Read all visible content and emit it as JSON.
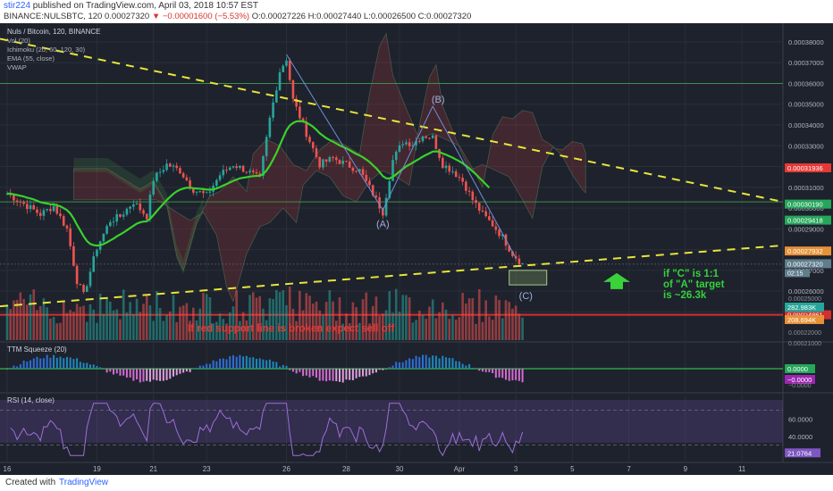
{
  "header": {
    "author": "stir224",
    "published": "published on TradingView.com, April 03, 2018 10:57 EST",
    "symbol_line": "BINANCE:NULSBTC, 120",
    "last": "0.00027320",
    "change": "−0.00001600 (−5.53%)",
    "ohlc": "O:0.00027226 H:0.00027440 L:0.00026500 C:0.00027320"
  },
  "legend": {
    "title": "Nuls / Bitcoin, 120, BINANCE",
    "items": [
      "Vol (20)",
      "Ichimoku (20, 60, 120, 30)",
      "EMA (55, close)",
      "VWAP"
    ]
  },
  "panes": {
    "ttm_label": "TTM Squeeze (20)",
    "rsi_label": "RSI (14, close)"
  },
  "annotations": {
    "support_text": "If red support line is broken expect sell off",
    "target_line1": "if \"C\" is 1:1",
    "target_line2": "of \"A\" target",
    "target_line3": "is ~26.3k",
    "wave_a": "(A)",
    "wave_b": "(B)",
    "wave_c": "(C)"
  },
  "footer": {
    "created": "Created with",
    "brand": "TradingView"
  },
  "colors": {
    "bg": "#1e222d",
    "up": "#26a69a",
    "down": "#ef5350",
    "ema": "#39d12c",
    "dashed": "#e6e63a",
    "support": "#d32f2f",
    "annotation_red": "#e53935",
    "annotation_green": "#35d13b"
  },
  "chart_data": {
    "type": "candlestick",
    "price_axis": {
      "ticks": [
        "0.00038000",
        "0.00037000",
        "0.00036000",
        "0.00035000",
        "0.00034000",
        "0.00033000",
        "0.00032000",
        "0.00031000",
        "0.00030000",
        "0.00029000",
        "0.00028000",
        "0.00027000",
        "0.00026000",
        "0.00025000"
      ],
      "range": [
        0.000245,
        0.000389
      ]
    },
    "price_labels": [
      {
        "value": 0.00031936,
        "text": "0.00031936",
        "color": "#e53935"
      },
      {
        "value": 0.0003019,
        "text": "0.00030190",
        "color": "#26a65b"
      },
      {
        "value": 0.00029418,
        "text": "0.00029418",
        "color": "#26a65b"
      },
      {
        "value": 0.00027932,
        "text": "0.00027932",
        "color": "#e69138"
      },
      {
        "value": 0.0002732,
        "text": "0.00027320",
        "color": "#607d8b"
      },
      {
        "value": 0.00024861,
        "text": "0.00024861",
        "color": "#d32f2f"
      }
    ],
    "countdown": "02:15",
    "x_axis_ticks": [
      {
        "idx": 0,
        "label": "16"
      },
      {
        "idx": 27,
        "label": "19"
      },
      {
        "idx": 44,
        "label": "21"
      },
      {
        "idx": 60,
        "label": "23"
      },
      {
        "idx": 84,
        "label": "26"
      },
      {
        "idx": 102,
        "label": "28"
      },
      {
        "idx": 118,
        "label": "30"
      },
      {
        "idx": 136,
        "label": "Apr"
      },
      {
        "idx": 153,
        "label": "3"
      },
      {
        "idx": 170,
        "label": "5"
      },
      {
        "idx": 187,
        "label": "7"
      },
      {
        "idx": 204,
        "label": "9"
      },
      {
        "idx": 221,
        "label": "11"
      }
    ],
    "waypoints": [
      [
        0,
        0.000307
      ],
      [
        5,
        0.000302
      ],
      [
        10,
        0.000297
      ],
      [
        14,
        0.000301
      ],
      [
        18,
        0.00029
      ],
      [
        21,
        0.000265
      ],
      [
        23,
        0.000258
      ],
      [
        27,
        0.000281
      ],
      [
        31,
        0.000294
      ],
      [
        34,
        0.000296
      ],
      [
        38,
        0.000303
      ],
      [
        42,
        0.000296
      ],
      [
        44,
        0.000314
      ],
      [
        48,
        0.000321
      ],
      [
        52,
        0.000318
      ],
      [
        56,
        0.000309
      ],
      [
        60,
        0.000306
      ],
      [
        64,
        0.000316
      ],
      [
        68,
        0.000321
      ],
      [
        72,
        0.000318
      ],
      [
        76,
        0.000314
      ],
      [
        79,
        0.000343
      ],
      [
        82,
        0.000366
      ],
      [
        84,
        0.000372
      ],
      [
        86,
        0.000352
      ],
      [
        90,
        0.000336
      ],
      [
        94,
        0.000321
      ],
      [
        98,
        0.000324
      ],
      [
        102,
        0.000321
      ],
      [
        106,
        0.000318
      ],
      [
        110,
        0.000307
      ],
      [
        113,
        0.000298
      ],
      [
        116,
        0.000323
      ],
      [
        119,
        0.000332
      ],
      [
        122,
        0.000331
      ],
      [
        125,
        0.000335
      ],
      [
        128,
        0.000334
      ],
      [
        131,
        0.000321
      ],
      [
        134,
        0.000318
      ],
      [
        137,
        0.000313
      ],
      [
        140,
        0.000304
      ],
      [
        143,
        0.000297
      ],
      [
        146,
        0.000292
      ],
      [
        149,
        0.000286
      ],
      [
        152,
        0.000278
      ],
      [
        155,
        0.000273
      ]
    ],
    "volume_axis": {
      "ticks": [
        "0.00025000",
        "0.00024000",
        "0.00023000",
        "0.00022000",
        "0.00021000"
      ],
      "labels": [
        {
          "text": "282.983K",
          "color": "#26a69a"
        },
        {
          "text": "208.694K",
          "color": "#e69138"
        }
      ]
    },
    "ttm_axis": {
      "ticks": [
        "0.0000",
        "−0.0000"
      ],
      "labels": [
        {
          "text": "0.0000",
          "color": "#26a65b"
        },
        {
          "text": "−0.0000",
          "color": "#9c27b0"
        }
      ]
    },
    "rsi_axis": {
      "ticks": [
        "60.0000",
        "40.0000"
      ],
      "range": [
        10,
        90
      ],
      "label": "21.0764"
    }
  }
}
